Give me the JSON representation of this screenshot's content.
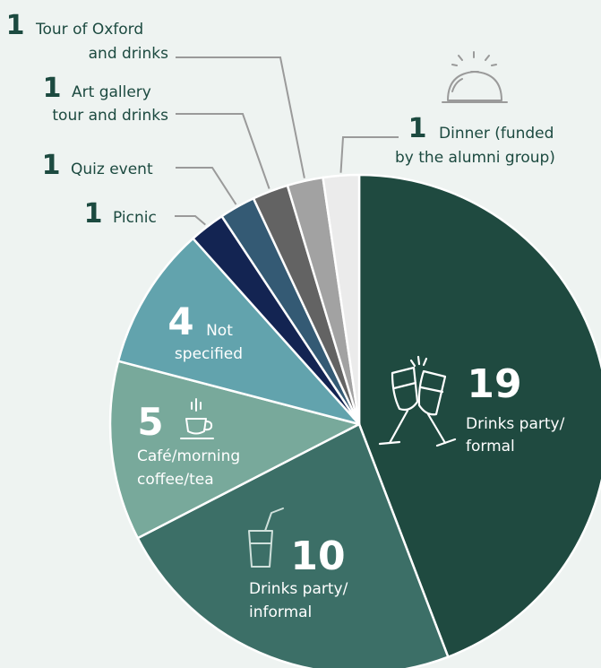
{
  "chart_data": {
    "type": "pie",
    "title": "",
    "slices": [
      {
        "label": [
          "Drinks party/",
          "formal"
        ],
        "value": 19,
        "color": "#1f4a40",
        "icon": "champagne-glasses-icon"
      },
      {
        "label": [
          "Drinks party/",
          "informal"
        ],
        "value": 10,
        "color": "#3c6f67",
        "icon": "glass-with-straw-icon"
      },
      {
        "label": [
          "Café/morning",
          "coffee/tea"
        ],
        "value": 5,
        "color": "#78a99b",
        "icon": "coffee-cup-icon"
      },
      {
        "label": [
          "Not",
          "specified"
        ],
        "value": 4,
        "color": "#62a3ad"
      },
      {
        "label": [
          "Picnic"
        ],
        "value": 1,
        "color": "#132452"
      },
      {
        "label": [
          "Quiz event"
        ],
        "value": 1,
        "color": "#345a74"
      },
      {
        "label": [
          "Art gallery",
          "tour and drinks"
        ],
        "value": 1,
        "color": "#636363"
      },
      {
        "label": [
          "Tour of Oxford",
          "and drinks"
        ],
        "value": 1,
        "color": "#a2a2a2"
      },
      {
        "label": [
          "Dinner (funded",
          "by the alumni group)"
        ],
        "value": 1,
        "color": "#ebebeb",
        "icon": "dinner-cloche-icon"
      }
    ],
    "start_position": "top",
    "direction": "clockwise",
    "text_color": "#1c4a40",
    "label_color": "#ffffff"
  }
}
